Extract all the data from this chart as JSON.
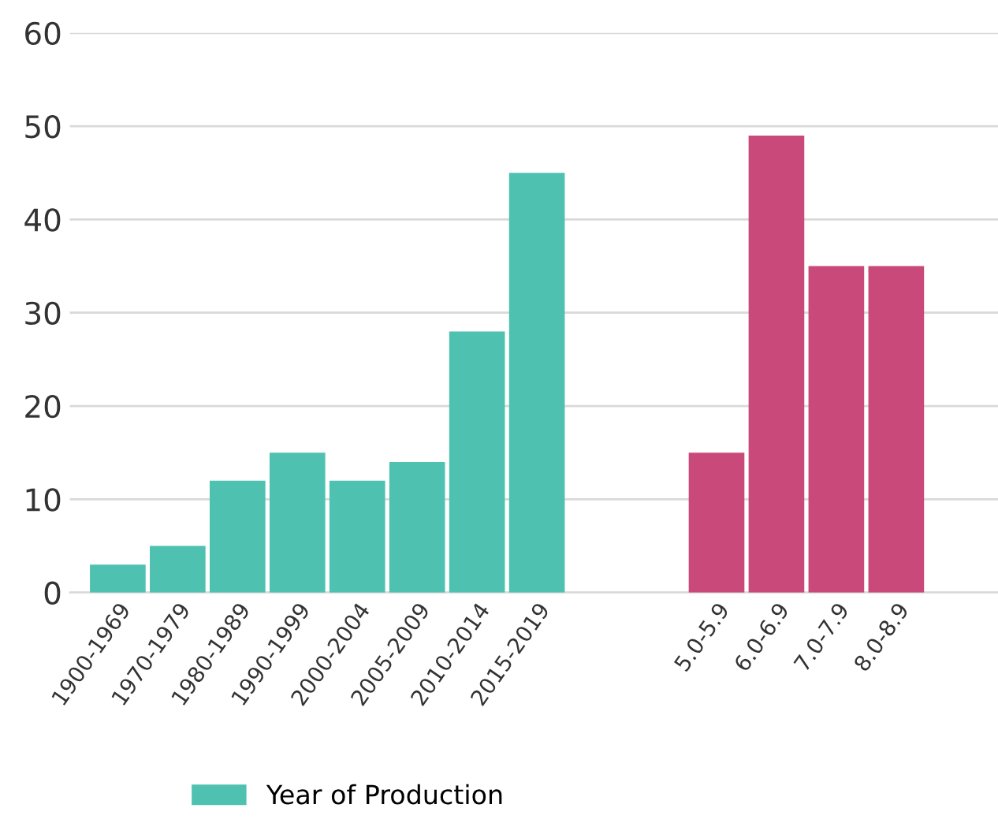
{
  "chart_data": {
    "type": "bar",
    "categories": [
      "1900-1969",
      "1970-1979",
      "1980-1989",
      "1990-1999",
      "2000-2004",
      "2005-2009",
      "2010-2014",
      "2015-2019",
      null,
      null,
      "5.0-5.9",
      "6.0-6.9",
      "7.0-7.9",
      "8.0-8.9"
    ],
    "series": [
      {
        "name": "Year of Production",
        "color": "#4fc1b0",
        "values": [
          3,
          5,
          12,
          15,
          12,
          14,
          28,
          45,
          null,
          null,
          null,
          null,
          null,
          null
        ]
      },
      {
        "color": "#c94a7a",
        "values": [
          null,
          null,
          null,
          null,
          null,
          null,
          null,
          null,
          null,
          null,
          15,
          49,
          35,
          35
        ]
      }
    ],
    "ylim": [
      0,
      60
    ],
    "yticks": [
      0,
      10,
      20,
      30,
      40,
      50,
      60
    ],
    "grid": "y",
    "legend": "bottom"
  }
}
